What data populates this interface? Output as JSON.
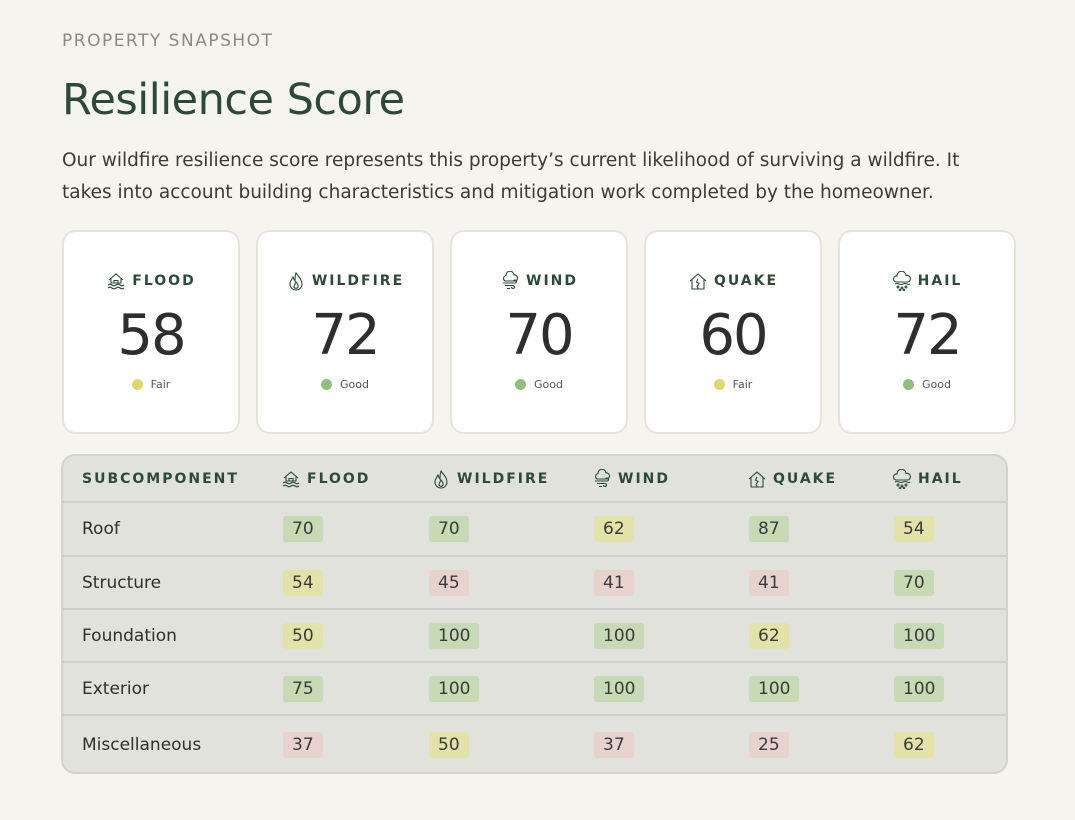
{
  "header": {
    "eyebrow": "PROPERTY SNAPSHOT",
    "title": "Resilience Score",
    "description": "Our wildfire resilience score represents this property’s current likelihood of surviving a wildfire. It takes into account building characteristics and mitigation work completed by the homeowner."
  },
  "colors": {
    "title_green": "#2c4a38",
    "good": "#8fbf7a",
    "fair": "#dcd96a",
    "poor": "#e9c9c3",
    "good_bg": "#c6dbb4",
    "fair_bg": "#e3e3a9",
    "poor_bg": "#e8d2cd"
  },
  "cards": [
    {
      "icon": "flood-icon",
      "label": "FLOOD",
      "score": "58",
      "status": "Fair",
      "status_color": "#dcd96a"
    },
    {
      "icon": "wildfire-icon",
      "label": "WILDFIRE",
      "score": "72",
      "status": "Good",
      "status_color": "#8fbf7a"
    },
    {
      "icon": "wind-icon",
      "label": "WIND",
      "score": "70",
      "status": "Good",
      "status_color": "#8fbf7a"
    },
    {
      "icon": "quake-icon",
      "label": "QUAKE",
      "score": "60",
      "status": "Fair",
      "status_color": "#dcd96a"
    },
    {
      "icon": "hail-icon",
      "label": "HAIL",
      "score": "72",
      "status": "Good",
      "status_color": "#8fbf7a"
    }
  ],
  "table": {
    "header_label": "SUBCOMPONENT",
    "columns": [
      {
        "icon": "flood-icon",
        "label": "FLOOD"
      },
      {
        "icon": "wildfire-icon",
        "label": "WILDFIRE"
      },
      {
        "icon": "wind-icon",
        "label": "WIND"
      },
      {
        "icon": "quake-icon",
        "label": "QUAKE"
      },
      {
        "icon": "hail-icon",
        "label": "HAIL"
      }
    ],
    "rows": [
      {
        "label": "Roof",
        "values": [
          {
            "v": "70",
            "level": "good"
          },
          {
            "v": "70",
            "level": "good"
          },
          {
            "v": "62",
            "level": "fair"
          },
          {
            "v": "87",
            "level": "good"
          },
          {
            "v": "54",
            "level": "fair"
          }
        ]
      },
      {
        "label": "Structure",
        "values": [
          {
            "v": "54",
            "level": "fair"
          },
          {
            "v": "45",
            "level": "poor"
          },
          {
            "v": "41",
            "level": "poor"
          },
          {
            "v": "41",
            "level": "poor"
          },
          {
            "v": "70",
            "level": "good"
          }
        ]
      },
      {
        "label": "Foundation",
        "values": [
          {
            "v": "50",
            "level": "fair"
          },
          {
            "v": "100",
            "level": "good"
          },
          {
            "v": "100",
            "level": "good"
          },
          {
            "v": "62",
            "level": "fair"
          },
          {
            "v": "100",
            "level": "good"
          }
        ]
      },
      {
        "label": "Exterior",
        "values": [
          {
            "v": "75",
            "level": "good"
          },
          {
            "v": "100",
            "level": "good"
          },
          {
            "v": "100",
            "level": "good"
          },
          {
            "v": "100",
            "level": "good"
          },
          {
            "v": "100",
            "level": "good"
          }
        ]
      },
      {
        "label": "Miscellaneous",
        "values": [
          {
            "v": "37",
            "level": "poor"
          },
          {
            "v": "50",
            "level": "fair"
          },
          {
            "v": "37",
            "level": "poor"
          },
          {
            "v": "25",
            "level": "poor"
          },
          {
            "v": "62",
            "level": "fair"
          }
        ]
      }
    ]
  }
}
